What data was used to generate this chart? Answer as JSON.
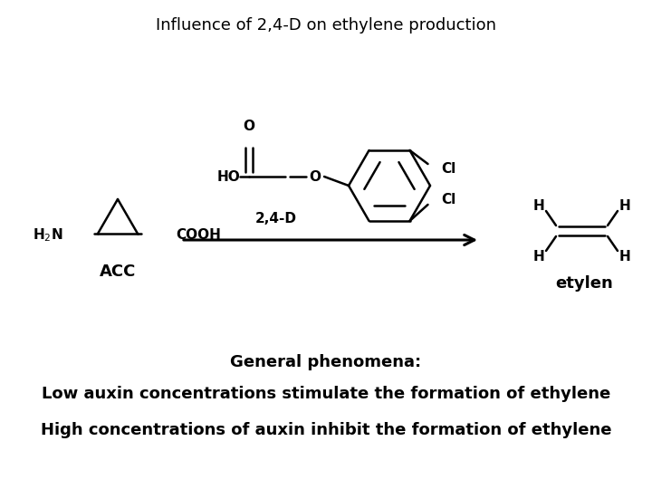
{
  "title": "Influence of 2,4-D on ethylene production",
  "title_fontsize": 13,
  "title_fontweight": "normal",
  "bg_color": "#ffffff",
  "text_color": "#000000",
  "line1": "General phenomena:",
  "line2": "Low auxin concentrations stimulate the formation of ethylene",
  "line3": "High concentrations of auxin inhibit the formation of ethylene",
  "text_fontsize_bold": 14,
  "acc_label": "ACC",
  "etylen_label": "etylen",
  "two4d_label": "2,4-D",
  "fig_width": 7.2,
  "fig_height": 5.4,
  "dpi": 100
}
